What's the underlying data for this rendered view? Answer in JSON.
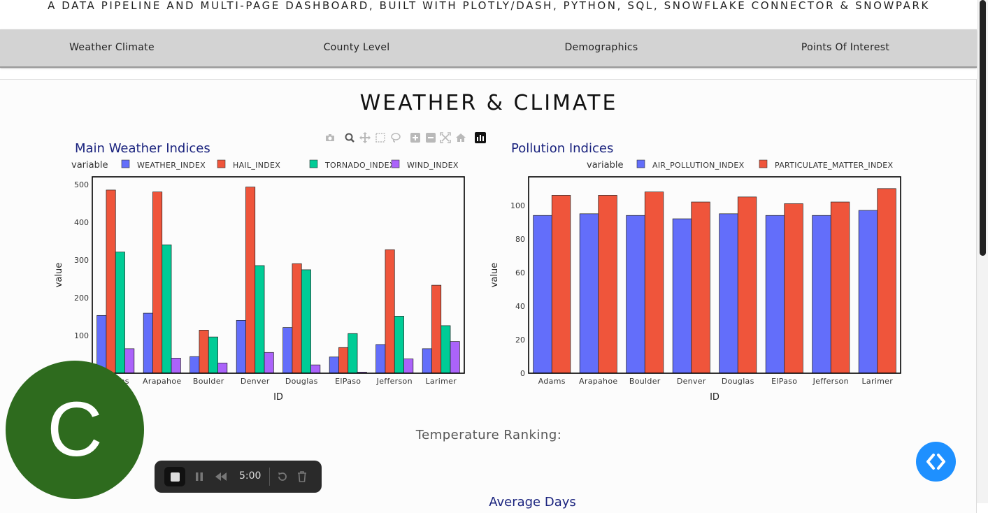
{
  "header": {
    "subtitle": "A DATA PIPELINE AND MULTI-PAGE DASHBOARD, BUILT WITH PLOTLY/DASH, PYTHON, SQL, SNOWFLAKE CONNECTOR & SNOWPARK"
  },
  "nav": {
    "items": [
      {
        "label": "Weather Climate"
      },
      {
        "label": "County Level"
      },
      {
        "label": "Demographics"
      },
      {
        "label": "Points Of Interest"
      }
    ]
  },
  "page": {
    "title": "WEATHER & CLIMATE",
    "temperature_ranking": "Temperature Ranking:",
    "average_days": "Average Days"
  },
  "colors": {
    "WEATHER_INDEX": "#636efa",
    "HAIL_INDEX": "#ef553b",
    "TORNADO_INDEX": "#00cc96",
    "WIND_INDEX": "#ab63fa",
    "AIR_POLLUTION_INDEX": "#636efa",
    "PARTICULATE_MATTER_INDEX": "#ef553b",
    "chart_title": "#1a237e",
    "avatar": "#2e6b1e",
    "code_button": "#1e90ff"
  },
  "chart_data": [
    {
      "type": "bar",
      "title": "Main Weather Indices",
      "xlabel": "ID",
      "ylabel": "value",
      "legend_title": "variable",
      "legend_position": "top",
      "ylim": [
        0,
        520
      ],
      "yticks": [
        100,
        200,
        300,
        400,
        500
      ],
      "categories": [
        "Adams",
        "Arapahoe",
        "Boulder",
        "Denver",
        "Douglas",
        "ElPaso",
        "Jefferson",
        "Larimer"
      ],
      "series": [
        {
          "name": "WEATHER_INDEX",
          "values": [
            153,
            159,
            44,
            140,
            121,
            43,
            76,
            65
          ]
        },
        {
          "name": "HAIL_INDEX",
          "values": [
            485,
            480,
            114,
            493,
            290,
            68,
            327,
            233
          ]
        },
        {
          "name": "TORNADO_INDEX",
          "values": [
            321,
            340,
            96,
            285,
            274,
            105,
            151,
            126
          ]
        },
        {
          "name": "WIND_INDEX",
          "values": [
            65,
            40,
            27,
            55,
            22,
            3,
            38,
            84
          ]
        }
      ]
    },
    {
      "type": "bar",
      "title": "Pollution Indices",
      "xlabel": "ID",
      "ylabel": "value",
      "legend_title": "variable",
      "legend_position": "top",
      "ylim": [
        0,
        117
      ],
      "yticks": [
        0,
        20,
        40,
        60,
        80,
        100
      ],
      "categories": [
        "Adams",
        "Arapahoe",
        "Boulder",
        "Denver",
        "Douglas",
        "ElPaso",
        "Jefferson",
        "Larimer"
      ],
      "series": [
        {
          "name": "AIR_POLLUTION_INDEX",
          "values": [
            94,
            95,
            94,
            92,
            95,
            94,
            94,
            97
          ]
        },
        {
          "name": "PARTICULATE_MATTER_INDEX",
          "values": [
            106,
            106,
            108,
            102,
            105,
            101,
            102,
            110
          ]
        }
      ]
    }
  ],
  "modebar": {
    "icons": [
      "camera-icon",
      "zoom-icon",
      "pan-icon",
      "box-select-icon",
      "lasso-icon",
      "zoom-in-icon",
      "zoom-out-icon",
      "autoscale-icon",
      "reset-axes-icon",
      "plotly-logo-icon"
    ]
  },
  "avatar": {
    "letter": "C"
  },
  "recorder": {
    "time": "5:00"
  }
}
